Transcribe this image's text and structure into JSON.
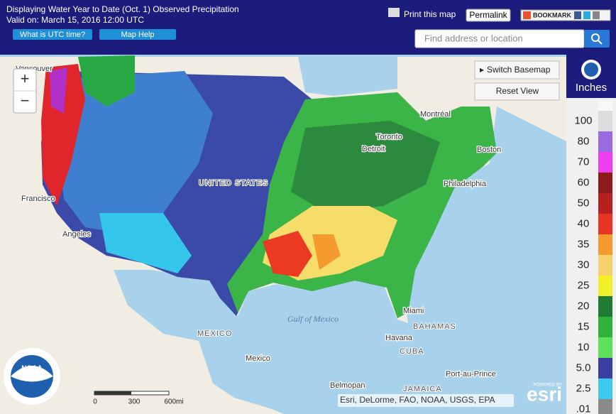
{
  "header": {
    "title": "Displaying Water Year to Date (Oct. 1) Observed Precipitation",
    "valid": "Valid on: March 15, 2016 12:00 UTC",
    "buttons": [
      "What is UTC time?",
      "Map Help"
    ]
  },
  "toolbar": {
    "print": "Print this map",
    "permalink": "Permalink",
    "bookmark": "BOOKMARK",
    "search_placeholder": "Find address or location"
  },
  "map": {
    "zoom_in": "+",
    "zoom_out": "−",
    "switch_basemap": "Switch Basemap",
    "reset_view": "Reset View",
    "labels": [
      "Vancouver",
      "Montréal",
      "Toronto",
      "Detroit",
      "Boston",
      "Philadelphia",
      "Francisco",
      "Angeles",
      "UNITED STATES",
      "MEXICO",
      "Gulf of Mexico",
      "Miami",
      "Havana",
      "BAHAMAS",
      "CUBA",
      "Port-au-Prince",
      "JAMAICA",
      "Belmopan",
      "Mexico"
    ],
    "scale": [
      "0",
      "300",
      "600mi"
    ],
    "attribution": "Esri, DeLorme, FAO, NOAA, USGS, EPA",
    "powered_by": "POWERED BY",
    "esri": "esri",
    "noaa": "NOAA"
  },
  "legend": {
    "title": "Inches",
    "labels": [
      "100",
      "80",
      "70",
      "60",
      "50",
      "40",
      "35",
      "30",
      "25",
      "20",
      "15",
      "10",
      "5.0",
      "2.5",
      ".01"
    ]
  }
}
